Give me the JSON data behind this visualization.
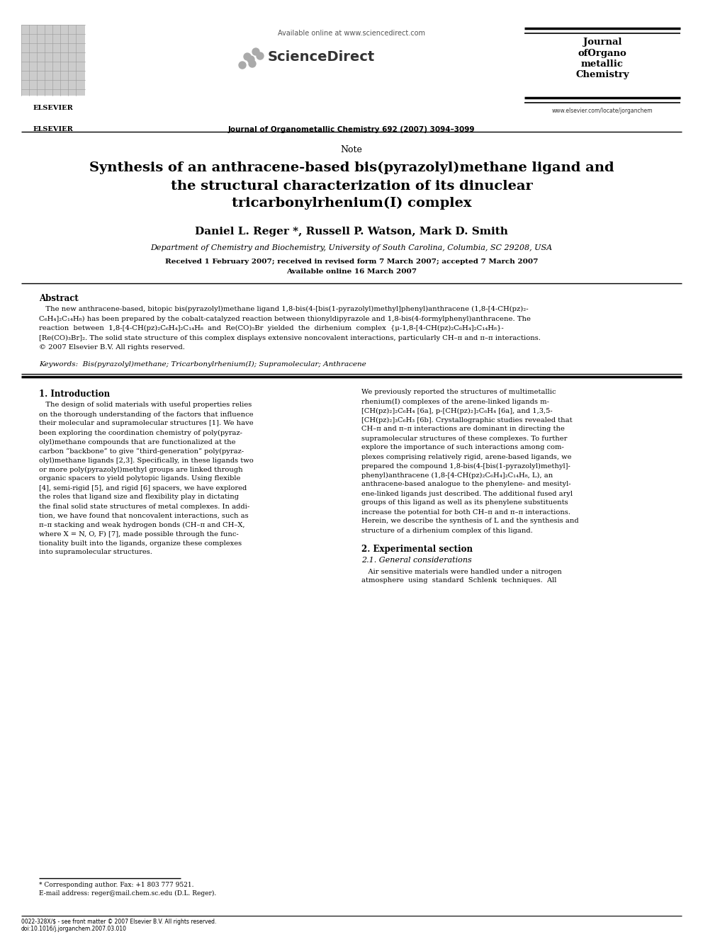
{
  "background_color": "#ffffff",
  "page_width": 9.92,
  "page_height": 13.23,
  "dpi": 100,
  "header": {
    "available_online": "Available online at www.sciencedirect.com",
    "sciencedirect": "ScienceDirect",
    "journal_name": "Journal of Organometallic Chemistry 692 (2007) 3094–3099",
    "journal_short": "Journal\nofOrgano\nmetallic\nChemistry",
    "website": "www.elsevier.com/locate/jorganchem",
    "elsevier": "ELSEVIER"
  },
  "article_type": "Note",
  "title_line1": "Synthesis of an anthracene-based bis(pyrazolyl)methane ligand and",
  "title_line2": "the structural characterization of its dinuclear",
  "title_line3": "tricarbonylrhenium(I) complex",
  "authors": "Daniel L. Reger *, Russell P. Watson, Mark D. Smith",
  "affiliation": "Department of Chemistry and Biochemistry, University of South Carolina, Columbia, SC 29208, USA",
  "received": "Received 1 February 2007; received in revised form 7 March 2007; accepted 7 March 2007",
  "available": "Available online 16 March 2007",
  "abstract_title": "Abstract",
  "abstract_lines": [
    "   The new anthracene-based, bitopic bis(pyrazolyl)methane ligand 1,8-bis(4-[bis(1-pyrazolyl)methyl]phenyl)anthracene (1,8-[4-CH(pz)₂-",
    "C₆H₄]₂C₁₄H₈) has been prepared by the cobalt-catalyzed reaction between thionyldipyrazole and 1,8-bis(4-formylphenyl)anthracene. The",
    "reaction  between  1,8-[4-CH(pz)₂C₆H₄]₂C₁₄H₈  and  Re(CO)₅Br  yielded  the  dirhenium  complex  {μ-1,8-[4-CH(pz)₂C₆H₄]₂C₁₄H₈}-",
    "[Re(CO)₃Br]₂. The solid state structure of this complex displays extensive noncovalent interactions, particularly CH–π and π–π interactions.",
    "© 2007 Elsevier B.V. All rights reserved."
  ],
  "keywords": "Keywords:  Bis(pyrazolyl)methane; Tricarbonylrhenium(I); Supramolecular; Anthracene",
  "section1_title": "1. Introduction",
  "left_col_lines": [
    "   The design of solid materials with useful properties relies",
    "on the thorough understanding of the factors that influence",
    "their molecular and supramolecular structures [1]. We have",
    "been exploring the coordination chemistry of poly(pyraz-",
    "olyl)methane compounds that are functionalized at the",
    "carbon “backbone” to give “third-generation” poly(pyraz-",
    "olyl)methane ligands [2,3]. Specifically, in these ligands two",
    "or more poly(pyrazolyl)methyl groups are linked through",
    "organic spacers to yield polytopic ligands. Using flexible",
    "[4], semi-rigid [5], and rigid [6] spacers, we have explored",
    "the roles that ligand size and flexibility play in dictating",
    "the final solid state structures of metal complexes. In addi-",
    "tion, we have found that noncovalent interactions, such as",
    "π–π stacking and weak hydrogen bonds (CH–π and CH–X,",
    "where X = N, O, F) [7], made possible through the func-",
    "tionality built into the ligands, organize these complexes",
    "into supramolecular structures."
  ],
  "right_col_lines": [
    "We previously reported the structures of multimetallic",
    "rhenium(I) complexes of the arene-linked ligands m-",
    "[CH(pz)₂]₂C₆H₄ [6a], p-[CH(pz)₂]₂C₆H₄ [6a], and 1,3,5-",
    "[CH(pz)₂]₃C₆H₃ [6b]. Crystallographic studies revealed that",
    "CH–π and π–π interactions are dominant in directing the",
    "supramolecular structures of these complexes. To further",
    "explore the importance of such interactions among com-",
    "plexes comprising relatively rigid, arene-based ligands, we",
    "prepared the compound 1,8-bis(4-[bis(1-pyrazolyl)methyl]-",
    "phenyl)anthracene (1,8-[4-CH(pz)₂C₆H₄]₂C₁₄H₈, L), an",
    "anthracene-based analogue to the phenylene- and mesityl-",
    "ene-linked ligands just described. The additional fused aryl",
    "groups of this ligand as well as its phenylene substituents",
    "increase the potential for both CH–π and π–π interactions.",
    "Herein, we describe the synthesis of L and the synthesis and",
    "structure of a dirhenium complex of this ligand."
  ],
  "section2_title": "2. Experimental section",
  "section2_sub": "2.1. General considerations",
  "section2_lines": [
    "   Air sensitive materials were handled under a nitrogen",
    "atmosphere  using  standard  Schlenk  techniques.  All"
  ],
  "footnote_star": "* Corresponding author. Fax: +1 803 777 9521.",
  "footnote_email": "E-mail address: reger@mail.chem.sc.edu (D.L. Reger).",
  "footer_copyright": "0022-328X/$ - see front matter © 2007 Elsevier B.V. All rights reserved.",
  "footer_doi": "doi:10.1016/j.jorganchem.2007.03.010"
}
